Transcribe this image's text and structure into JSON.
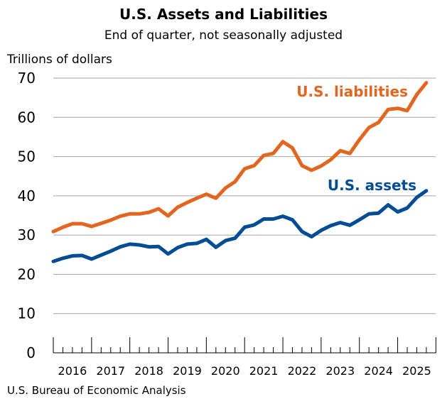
{
  "chart_data": {
    "type": "line",
    "title": "U.S. Assets and Liabilities",
    "subtitle": "End of quarter, not seasonally adjusted",
    "ylabel": "Trillions of dollars",
    "xlabel": "",
    "ylim": [
      0,
      70
    ],
    "yticks": [
      "0",
      "10",
      "20",
      "30",
      "40",
      "50",
      "60",
      "70"
    ],
    "grid": true,
    "x_start": "2015 Q4",
    "x_end": "2025 Q3",
    "xticks": [
      "2016",
      "2017",
      "2018",
      "2019",
      "2020",
      "2021",
      "2022",
      "2023",
      "2024",
      "2025"
    ],
    "series": [
      {
        "name": "U.S. liabilities",
        "color": "#E2661F",
        "values": [
          30.9,
          32.0,
          32.9,
          32.9,
          32.2,
          33.0,
          33.8,
          34.8,
          35.4,
          35.4,
          35.8,
          36.7,
          34.9,
          37.1,
          38.3,
          39.4,
          40.4,
          39.4,
          42.0,
          43.6,
          46.9,
          47.7,
          50.3,
          50.8,
          53.8,
          52.2,
          47.7,
          46.5,
          47.6,
          49.2,
          51.5,
          50.8,
          54.3,
          57.4,
          58.7,
          62.0,
          62.3,
          61.7,
          65.8,
          68.8
        ]
      },
      {
        "name": "U.S. assets",
        "color": "#004C97",
        "values": [
          23.3,
          24.1,
          24.7,
          24.8,
          23.9,
          24.9,
          25.9,
          27.0,
          27.7,
          27.5,
          27.0,
          27.1,
          25.2,
          26.8,
          27.7,
          27.9,
          28.9,
          26.9,
          28.6,
          29.2,
          32.0,
          32.6,
          34.1,
          34.1,
          34.8,
          33.9,
          30.9,
          29.6,
          31.2,
          32.4,
          33.2,
          32.5,
          33.9,
          35.4,
          35.6,
          37.7,
          35.9,
          36.9,
          39.6,
          41.3
        ]
      }
    ],
    "source": "U.S. Bureau of Economic Analysis"
  }
}
